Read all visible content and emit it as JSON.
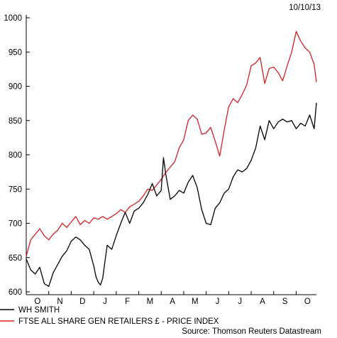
{
  "date": "10/10/13",
  "source": "Source: Thomson Reuters Datastream",
  "colors": {
    "wh_smith": "#000000",
    "ftse": "#d42027",
    "axis": "#000000"
  },
  "chart_data": {
    "type": "line",
    "title": "",
    "xlabel": "",
    "ylabel": "",
    "ylim": [
      600,
      1000
    ],
    "yticks": [
      600,
      650,
      700,
      750,
      800,
      850,
      900,
      950,
      1000
    ],
    "x_tick_labels": [
      "O",
      "N",
      "D",
      "J",
      "F",
      "M",
      "A",
      "M",
      "J",
      "J",
      "A",
      "S",
      "O"
    ],
    "x_tick_months": [
      0.5,
      1.5,
      2.5,
      3.5,
      4.5,
      5.5,
      6.5,
      7.5,
      8.5,
      9.5,
      10.5,
      11.5,
      12.5
    ],
    "xlim": [
      0,
      12.9
    ],
    "grid": false,
    "legend_position": "bottom",
    "series": [
      {
        "name": "WH SMITH",
        "color": "#000000",
        "x": [
          0,
          0.2,
          0.4,
          0.6,
          0.8,
          1.0,
          1.2,
          1.4,
          1.6,
          1.8,
          2.0,
          2.2,
          2.4,
          2.6,
          2.8,
          3.0,
          3.1,
          3.2,
          3.3,
          3.4,
          3.5,
          3.6,
          3.8,
          4.0,
          4.2,
          4.4,
          4.6,
          4.8,
          5.0,
          5.2,
          5.4,
          5.6,
          5.8,
          6.0,
          6.1,
          6.2,
          6.4,
          6.6,
          6.8,
          7.0,
          7.2,
          7.4,
          7.6,
          7.8,
          8.0,
          8.2,
          8.4,
          8.6,
          8.8,
          9.0,
          9.2,
          9.4,
          9.6,
          9.8,
          10.0,
          10.2,
          10.4,
          10.6,
          10.8,
          11.0,
          11.2,
          11.4,
          11.6,
          11.8,
          12.0,
          12.2,
          12.4,
          12.6,
          12.8,
          12.9
        ],
        "values": [
          648,
          632,
          626,
          636,
          612,
          608,
          628,
          640,
          652,
          660,
          674,
          680,
          676,
          668,
          662,
          638,
          622,
          614,
          610,
          620,
          645,
          668,
          662,
          682,
          700,
          716,
          700,
          718,
          722,
          730,
          742,
          758,
          740,
          748,
          796,
          772,
          735,
          740,
          748,
          744,
          760,
          770,
          752,
          720,
          700,
          698,
          722,
          730,
          744,
          750,
          768,
          778,
          775,
          780,
          792,
          810,
          842,
          822,
          850,
          838,
          848,
          852,
          848,
          850,
          838,
          846,
          842,
          858,
          838,
          876
        ]
      },
      {
        "name": "FTSE ALL SHARE GEN RETAILERS £ - PRICE INDEX",
        "color": "#d42027",
        "x": [
          0,
          0.2,
          0.4,
          0.6,
          0.8,
          1.0,
          1.2,
          1.4,
          1.6,
          1.8,
          2.0,
          2.2,
          2.4,
          2.6,
          2.8,
          3.0,
          3.2,
          3.4,
          3.6,
          3.8,
          4.0,
          4.2,
          4.4,
          4.6,
          4.8,
          5.0,
          5.2,
          5.4,
          5.6,
          5.8,
          6.0,
          6.2,
          6.4,
          6.6,
          6.8,
          7.0,
          7.2,
          7.4,
          7.6,
          7.8,
          8.0,
          8.2,
          8.4,
          8.6,
          8.8,
          9.0,
          9.2,
          9.4,
          9.6,
          9.8,
          10.0,
          10.2,
          10.4,
          10.6,
          10.8,
          11.0,
          11.2,
          11.4,
          11.6,
          11.8,
          12.0,
          12.2,
          12.4,
          12.6,
          12.8,
          12.9
        ],
        "values": [
          652,
          676,
          684,
          692,
          682,
          676,
          684,
          690,
          700,
          694,
          702,
          710,
          698,
          704,
          700,
          708,
          706,
          710,
          706,
          710,
          714,
          720,
          716,
          724,
          728,
          732,
          740,
          750,
          748,
          756,
          764,
          774,
          782,
          790,
          810,
          822,
          850,
          858,
          852,
          830,
          832,
          840,
          820,
          798,
          836,
          870,
          882,
          876,
          888,
          902,
          930,
          934,
          942,
          904,
          926,
          928,
          920,
          908,
          930,
          950,
          980,
          966,
          956,
          950,
          932,
          906
        ]
      }
    ]
  }
}
